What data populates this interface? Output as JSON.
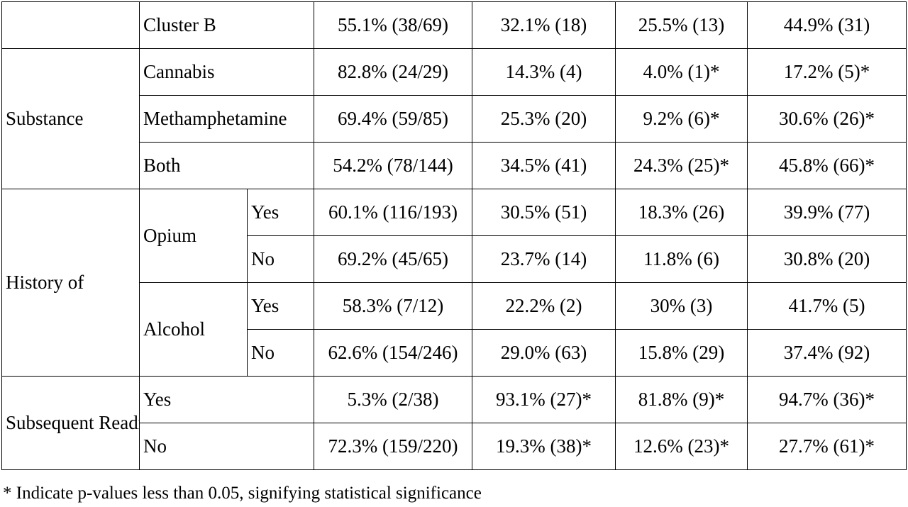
{
  "rows": {
    "cluster_b": {
      "label": "Cluster B",
      "values": [
        "55.1% (38/69)",
        "32.1% (18)",
        "25.5% (13)",
        "44.9% (31)"
      ]
    },
    "substance": {
      "label": "Substance",
      "cannabis": {
        "label": "Cannabis",
        "values": [
          "82.8% (24/29)",
          "14.3% (4)",
          "4.0% (1)*",
          "17.2% (5)*"
        ]
      },
      "methamphetamine": {
        "label": "Methamphetamine",
        "values": [
          "69.4% (59/85)",
          "25.3% (20)",
          "9.2% (6)*",
          "30.6% (26)*"
        ]
      },
      "both": {
        "label": "Both",
        "values": [
          "54.2% (78/144)",
          "34.5% (41)",
          "24.3% (25)*",
          "45.8% (66)*"
        ]
      }
    },
    "history_of": {
      "label": "History of",
      "opium": {
        "label": "Opium",
        "yes": {
          "label": "Yes",
          "values": [
            "60.1% (116/193)",
            "30.5% (51)",
            "18.3% (26)",
            "39.9% (77)"
          ]
        },
        "no": {
          "label": "No",
          "values": [
            "69.2% (45/65)",
            "23.7% (14)",
            "11.8% (6)",
            "30.8% (20)"
          ]
        }
      },
      "alcohol": {
        "label": "Alcohol",
        "yes": {
          "label": "Yes",
          "values": [
            "58.3% (7/12)",
            "22.2% (2)",
            "30% (3)",
            "41.7% (5)"
          ]
        },
        "no": {
          "label": "No",
          "values": [
            "62.6% (154/246)",
            "29.0% (63)",
            "15.8% (29)",
            "37.4% (92)"
          ]
        }
      }
    },
    "readmission": {
      "label": "Subsequent Readmission due to SIP",
      "yes": {
        "label": "Yes",
        "values": [
          "5.3% (2/38)",
          "93.1% (27)*",
          "81.8% (9)*",
          "94.7% (36)*"
        ]
      },
      "no": {
        "label": "No",
        "values": [
          "72.3% (159/220)",
          "19.3% (38)*",
          "12.6% (23)*",
          "27.7% (61)*"
        ]
      }
    }
  },
  "footnote": "* Indicate p-values less than 0.05, signifying statistical significance"
}
